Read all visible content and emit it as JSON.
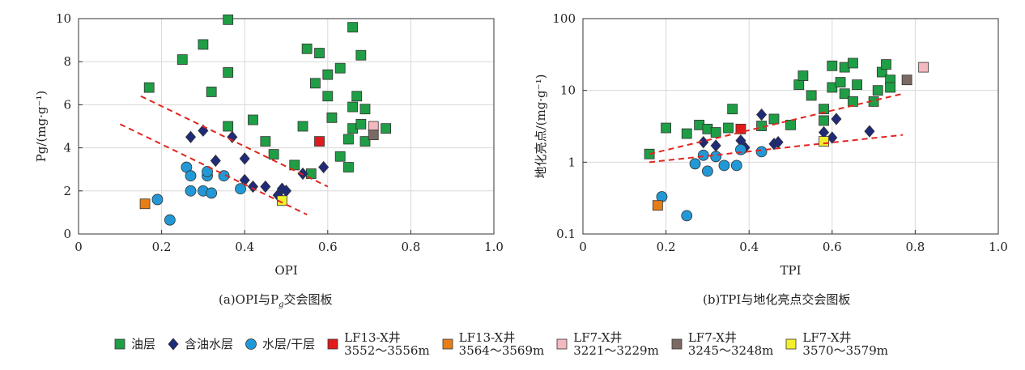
{
  "colors": {
    "oil": "#1f9e45",
    "oilwater": "#1f2a78",
    "water": "#2299d6",
    "lf13a": "#e11b1b",
    "lf13b": "#e67e17",
    "lf7a": "#f4b8bf",
    "lf7b": "#7b6a64",
    "lf7c": "#f2ef2c",
    "trend": "#e0261e",
    "grid": "#d8d8d8"
  },
  "legend": [
    {
      "key": "oil",
      "shape": "square",
      "label": "油层"
    },
    {
      "key": "oilwater",
      "shape": "diamond",
      "label": "含油水层"
    },
    {
      "key": "water",
      "shape": "circle",
      "label": "水层/干层"
    },
    {
      "key": "lf13a",
      "shape": "square",
      "label": "LF13-X井\n3552～3556m"
    },
    {
      "key": "lf13b",
      "shape": "square",
      "label": "LF13-X井\n3564～3569m"
    },
    {
      "key": "lf7a",
      "shape": "square",
      "label": "LF7-X井\n3221～3229m"
    },
    {
      "key": "lf7b",
      "shape": "square",
      "label": "LF7-X井\n3245～3248m"
    },
    {
      "key": "lf7c",
      "shape": "square",
      "label": "LF7-X井\n3570～3579m"
    }
  ],
  "chart_data": [
    {
      "type": "scatter",
      "caption": "(a)OPI与Pg交会图板",
      "xlabel": "OPI",
      "ylabel": "Pg/(mg·g⁻¹)",
      "xlim": [
        0,
        1.0
      ],
      "ylim": [
        0,
        10
      ],
      "xticks": [
        "0",
        "0.2",
        "0.4",
        "0.6",
        "0.8",
        "1.0"
      ],
      "yticks": [
        "0",
        "2",
        "4",
        "6",
        "8",
        "10"
      ],
      "grid": true,
      "yscale": "linear",
      "series": [
        {
          "key": "oil",
          "shape": "square",
          "points": [
            [
              0.17,
              6.8
            ],
            [
              0.25,
              8.1
            ],
            [
              0.3,
              8.8
            ],
            [
              0.36,
              9.95
            ],
            [
              0.36,
              7.5
            ],
            [
              0.36,
              5.0
            ],
            [
              0.32,
              6.6
            ],
            [
              0.42,
              5.3
            ],
            [
              0.45,
              4.3
            ],
            [
              0.47,
              3.7
            ],
            [
              0.52,
              3.2
            ],
            [
              0.54,
              5.0
            ],
            [
              0.55,
              8.6
            ],
            [
              0.56,
              2.8
            ],
            [
              0.57,
              7.0
            ],
            [
              0.58,
              8.4
            ],
            [
              0.6,
              7.4
            ],
            [
              0.6,
              6.4
            ],
            [
              0.61,
              5.4
            ],
            [
              0.63,
              7.7
            ],
            [
              0.63,
              3.6
            ],
            [
              0.65,
              3.1
            ],
            [
              0.65,
              4.4
            ],
            [
              0.66,
              9.6
            ],
            [
              0.66,
              5.9
            ],
            [
              0.66,
              4.9
            ],
            [
              0.67,
              6.4
            ],
            [
              0.68,
              5.1
            ],
            [
              0.68,
              8.3
            ],
            [
              0.69,
              5.8
            ],
            [
              0.69,
              4.3
            ],
            [
              0.74,
              4.9
            ]
          ]
        },
        {
          "key": "oilwater",
          "shape": "diamond",
          "points": [
            [
              0.27,
              4.5
            ],
            [
              0.3,
              4.8
            ],
            [
              0.33,
              3.4
            ],
            [
              0.37,
              4.5
            ],
            [
              0.4,
              3.5
            ],
            [
              0.4,
              2.5
            ],
            [
              0.42,
              2.2
            ],
            [
              0.45,
              2.2
            ],
            [
              0.48,
              1.8
            ],
            [
              0.49,
              2.1
            ],
            [
              0.5,
              2.0
            ],
            [
              0.54,
              2.8
            ],
            [
              0.59,
              3.1
            ]
          ]
        },
        {
          "key": "water",
          "shape": "circle",
          "points": [
            [
              0.19,
              1.6
            ],
            [
              0.22,
              0.65
            ],
            [
              0.26,
              3.1
            ],
            [
              0.27,
              2.7
            ],
            [
              0.27,
              2.0
            ],
            [
              0.3,
              2.0
            ],
            [
              0.31,
              2.7
            ],
            [
              0.31,
              2.9
            ],
            [
              0.32,
              1.9
            ],
            [
              0.35,
              2.7
            ],
            [
              0.39,
              2.1
            ]
          ]
        },
        {
          "key": "lf13a",
          "shape": "square",
          "points": [
            [
              0.58,
              4.3
            ]
          ]
        },
        {
          "key": "lf13b",
          "shape": "square",
          "points": [
            [
              0.16,
              1.4
            ]
          ]
        },
        {
          "key": "lf7a",
          "shape": "square",
          "points": [
            [
              0.71,
              5.0
            ]
          ]
        },
        {
          "key": "lf7b",
          "shape": "square",
          "points": [
            [
              0.71,
              4.6
            ]
          ]
        },
        {
          "key": "lf7c",
          "shape": "square",
          "points": [
            [
              0.49,
              1.55
            ]
          ]
        }
      ],
      "trendlines": [
        [
          [
            0.15,
            6.4
          ],
          [
            0.6,
            2.2
          ]
        ],
        [
          [
            0.1,
            5.1
          ],
          [
            0.55,
            0.9
          ]
        ]
      ]
    },
    {
      "type": "scatter",
      "caption": "(b)TPI与地化亮点交会图板",
      "xlabel": "TPI",
      "ylabel": "地化亮点/(mg·g⁻¹)",
      "xlim": [
        0,
        1.0
      ],
      "ylim": [
        0.1,
        100
      ],
      "xticks": [
        "0",
        "0.2",
        "0.4",
        "0.6",
        "0.8",
        "1.0"
      ],
      "yticks": [
        "0.1",
        "1",
        "10",
        "100"
      ],
      "grid": true,
      "yscale": "log",
      "series": [
        {
          "key": "oil",
          "shape": "square",
          "points": [
            [
              0.16,
              1.3
            ],
            [
              0.2,
              3.0
            ],
            [
              0.25,
              2.5
            ],
            [
              0.28,
              3.3
            ],
            [
              0.3,
              2.9
            ],
            [
              0.32,
              2.6
            ],
            [
              0.35,
              3.0
            ],
            [
              0.36,
              5.5
            ],
            [
              0.43,
              3.2
            ],
            [
              0.46,
              4.0
            ],
            [
              0.5,
              3.3
            ],
            [
              0.52,
              12.0
            ],
            [
              0.53,
              16.0
            ],
            [
              0.55,
              8.5
            ],
            [
              0.58,
              5.5
            ],
            [
              0.58,
              3.8
            ],
            [
              0.6,
              11.0
            ],
            [
              0.6,
              22.0
            ],
            [
              0.62,
              13.0
            ],
            [
              0.63,
              21.0
            ],
            [
              0.63,
              9.0
            ],
            [
              0.65,
              24.0
            ],
            [
              0.65,
              7.0
            ],
            [
              0.66,
              12.0
            ],
            [
              0.7,
              7.0
            ],
            [
              0.71,
              10.0
            ],
            [
              0.72,
              18.0
            ],
            [
              0.73,
              23.0
            ],
            [
              0.74,
              14.0
            ],
            [
              0.74,
              11.0
            ]
          ]
        },
        {
          "key": "oilwater",
          "shape": "diamond",
          "points": [
            [
              0.29,
              1.9
            ],
            [
              0.32,
              1.7
            ],
            [
              0.38,
              2.0
            ],
            [
              0.39,
              1.6
            ],
            [
              0.43,
              4.6
            ],
            [
              0.46,
              1.8
            ],
            [
              0.47,
              1.9
            ],
            [
              0.58,
              2.6
            ],
            [
              0.6,
              2.2
            ],
            [
              0.61,
              4.0
            ],
            [
              0.69,
              2.7
            ]
          ]
        },
        {
          "key": "water",
          "shape": "circle",
          "points": [
            [
              0.19,
              0.33
            ],
            [
              0.25,
              0.18
            ],
            [
              0.27,
              0.95
            ],
            [
              0.29,
              1.25
            ],
            [
              0.3,
              0.75
            ],
            [
              0.32,
              1.2
            ],
            [
              0.34,
              0.9
            ],
            [
              0.37,
              0.9
            ],
            [
              0.38,
              1.5
            ],
            [
              0.43,
              1.4
            ]
          ]
        },
        {
          "key": "lf13a",
          "shape": "square",
          "points": [
            [
              0.38,
              2.9
            ]
          ]
        },
        {
          "key": "lf13b",
          "shape": "square",
          "points": [
            [
              0.18,
              0.25
            ]
          ]
        },
        {
          "key": "lf7a",
          "shape": "square",
          "points": [
            [
              0.82,
              21.0
            ]
          ]
        },
        {
          "key": "lf7b",
          "shape": "square",
          "points": [
            [
              0.78,
              14.0
            ]
          ]
        },
        {
          "key": "lf7c",
          "shape": "square",
          "points": [
            [
              0.58,
              1.95
            ]
          ]
        }
      ],
      "trendlines": [
        [
          [
            0.16,
            1.3
          ],
          [
            0.77,
            9.0
          ]
        ],
        [
          [
            0.16,
            1.0
          ],
          [
            0.77,
            2.4
          ]
        ]
      ]
    }
  ]
}
